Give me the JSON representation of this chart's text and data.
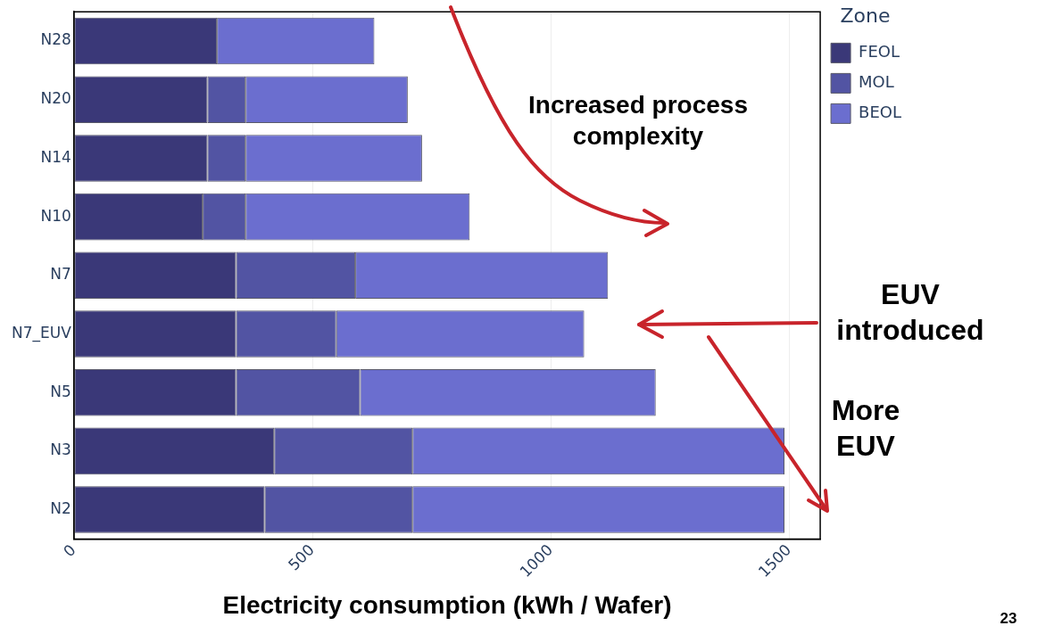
{
  "chart_data": {
    "type": "bar",
    "orientation": "horizontal",
    "stacked": true,
    "categories": [
      "N28",
      "N20",
      "N14",
      "N10",
      "N7",
      "N7_EUV",
      "N5",
      "N3",
      "N2"
    ],
    "series": [
      {
        "name": "FEOL",
        "color": "#3a3878",
        "values": [
          300,
          280,
          280,
          270,
          340,
          340,
          340,
          420,
          400
        ]
      },
      {
        "name": "MOL",
        "color": "#5254a3",
        "values": [
          0,
          80,
          80,
          90,
          250,
          210,
          260,
          290,
          310
        ]
      },
      {
        "name": "BEOL",
        "color": "#6b6ecf",
        "values": [
          330,
          340,
          370,
          470,
          530,
          520,
          620,
          780,
          780
        ]
      }
    ],
    "xlim": [
      0,
      1565
    ],
    "xticks": [
      0,
      500,
      1000,
      1500
    ],
    "xlabel": "Electricity consumption (kWh / Wafer)",
    "legend_title": "Zone",
    "legend": "top right",
    "grid": "x",
    "annotations": [
      "Increased process complexity",
      "EUV introduced",
      "More EUV",
      "23"
    ]
  }
}
